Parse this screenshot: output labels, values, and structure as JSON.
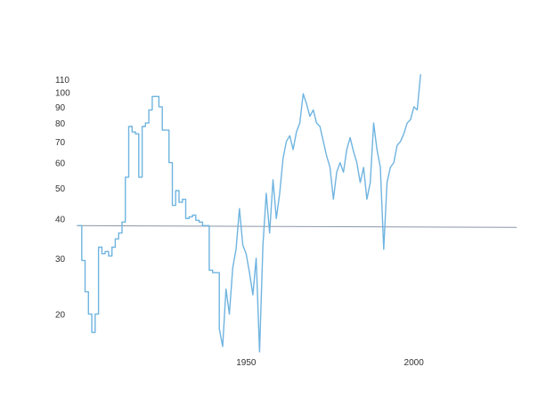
{
  "chart_data": {
    "type": "line",
    "title": "",
    "xlabel": "",
    "ylabel": "",
    "y_scale": "log",
    "grid": false,
    "legend": "none",
    "xlim": [
      1900,
      2020
    ],
    "ylim": [
      15.5,
      118
    ],
    "x_ticks": [
      "1950",
      "2000"
    ],
    "y_ticks": [
      "110",
      "100",
      "90",
      "80",
      "70",
      "60",
      "50",
      "40",
      "30",
      "20"
    ],
    "reference_line": {
      "y": 38
    },
    "colors": {
      "series": "#6fb4e0",
      "reference": "#8a96a6",
      "text": "#333333"
    },
    "series": [
      {
        "values": [
          [
            1900,
            38
          ],
          [
            1901,
            29.5
          ],
          [
            1902,
            23.5
          ],
          [
            1903,
            20
          ],
          [
            1904,
            17.5
          ],
          [
            1905,
            20
          ],
          [
            1906,
            32.5
          ],
          [
            1907,
            31
          ],
          [
            1908,
            31.5
          ],
          [
            1909,
            30.5
          ],
          [
            1910,
            32.5
          ],
          [
            1911,
            34.5
          ],
          [
            1912,
            36
          ],
          [
            1913,
            39
          ],
          [
            1914,
            54
          ],
          [
            1915,
            78
          ],
          [
            1916,
            75
          ],
          [
            1917,
            74
          ],
          [
            1918,
            54
          ],
          [
            1919,
            78
          ],
          [
            1920,
            80
          ],
          [
            1921,
            88
          ],
          [
            1922,
            97
          ],
          [
            1923,
            97
          ],
          [
            1924,
            90
          ],
          [
            1925,
            76
          ],
          [
            1926,
            76
          ],
          [
            1927,
            60
          ],
          [
            1928,
            44
          ],
          [
            1929,
            49
          ],
          [
            1930,
            45
          ],
          [
            1931,
            46
          ],
          [
            1932,
            40
          ],
          [
            1933,
            40.5
          ],
          [
            1934,
            41
          ],
          [
            1935,
            39.5
          ],
          [
            1936,
            39
          ],
          [
            1937,
            38
          ],
          [
            1938,
            38
          ],
          [
            1939,
            27.5
          ],
          [
            1940,
            27
          ],
          [
            1941,
            27
          ],
          [
            1942,
            18
          ],
          [
            1943,
            15.8
          ],
          [
            1944,
            24
          ],
          [
            1945,
            20
          ],
          [
            1946,
            28
          ],
          [
            1947,
            32
          ],
          [
            1948,
            43
          ],
          [
            1949,
            33
          ],
          [
            1950,
            31
          ],
          [
            1951,
            27
          ],
          [
            1952,
            23
          ],
          [
            1953,
            30
          ],
          [
            1954,
            15.2
          ],
          [
            1955,
            33
          ],
          [
            1956,
            48
          ],
          [
            1957,
            36
          ],
          [
            1958,
            53
          ],
          [
            1959,
            40
          ],
          [
            1960,
            48
          ],
          [
            1961,
            62
          ],
          [
            1962,
            70
          ],
          [
            1963,
            73
          ],
          [
            1964,
            66
          ],
          [
            1965,
            75
          ],
          [
            1966,
            80
          ],
          [
            1967,
            99
          ],
          [
            1968,
            92
          ],
          [
            1969,
            84
          ],
          [
            1970,
            88
          ],
          [
            1971,
            80
          ],
          [
            1972,
            78
          ],
          [
            1973,
            70
          ],
          [
            1974,
            63
          ],
          [
            1975,
            58
          ],
          [
            1976,
            46
          ],
          [
            1977,
            56
          ],
          [
            1978,
            60
          ],
          [
            1979,
            56
          ],
          [
            1980,
            66
          ],
          [
            1981,
            72
          ],
          [
            1982,
            65
          ],
          [
            1983,
            60
          ],
          [
            1984,
            52
          ],
          [
            1985,
            58
          ],
          [
            1986,
            46
          ],
          [
            1987,
            52
          ],
          [
            1988,
            80
          ],
          [
            1989,
            66
          ],
          [
            1990,
            58
          ],
          [
            1991,
            32
          ],
          [
            1992,
            52
          ],
          [
            1993,
            58
          ],
          [
            1994,
            60
          ],
          [
            1995,
            68
          ],
          [
            1996,
            70
          ],
          [
            1997,
            74
          ],
          [
            1998,
            80
          ],
          [
            1999,
            82
          ],
          [
            2000,
            90
          ],
          [
            2001,
            88
          ],
          [
            2002,
            114
          ]
        ]
      }
    ]
  }
}
